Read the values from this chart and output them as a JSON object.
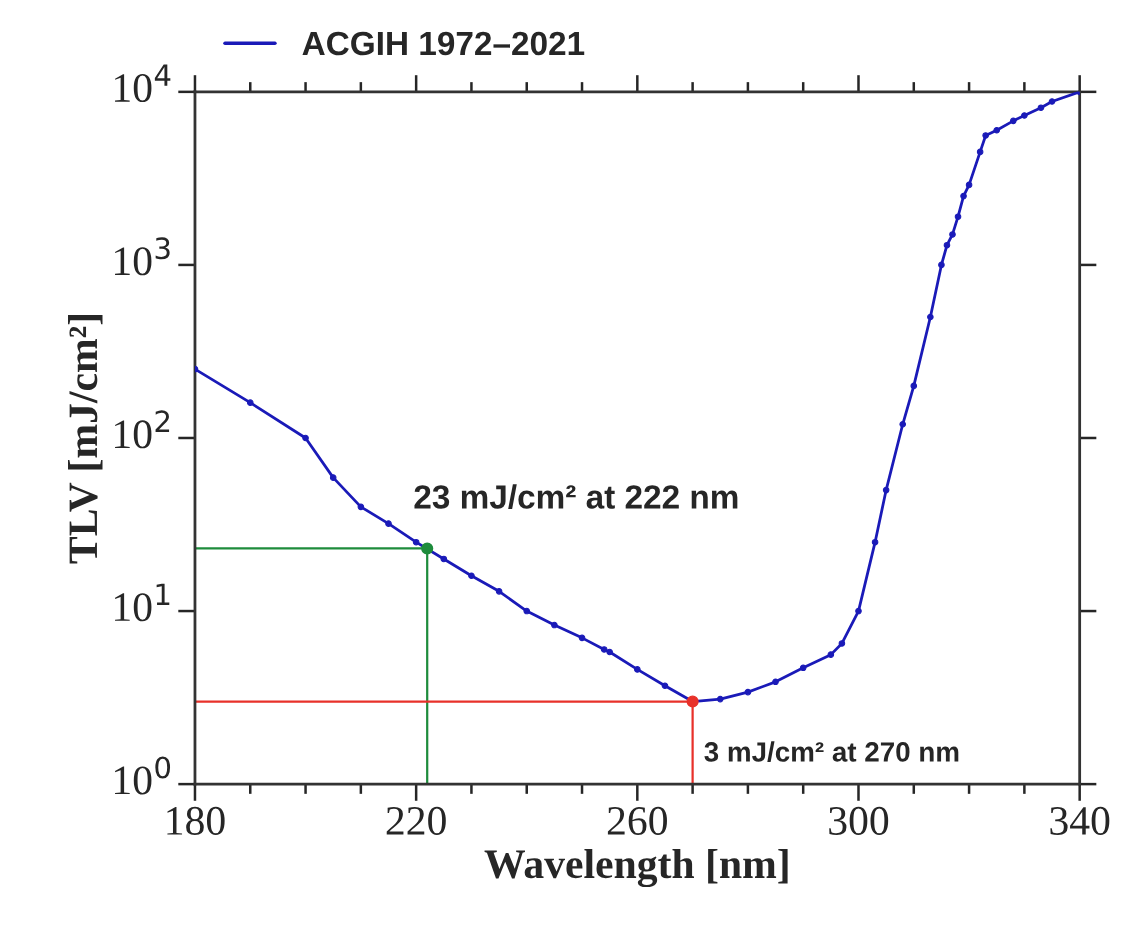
{
  "chart_data": {
    "type": "line",
    "xlabel": "Wavelength [nm]",
    "ylabel": "TLV [mJ/cm²]",
    "series": [
      {
        "name": "ACGIH 1972–2021",
        "color": "#1a1ab8",
        "x": [
          180,
          190,
          200,
          205,
          210,
          215,
          220,
          225,
          230,
          235,
          240,
          245,
          250,
          254,
          255,
          260,
          265,
          270,
          275,
          280,
          285,
          290,
          295,
          297,
          300,
          303,
          305,
          308,
          310,
          313,
          315,
          316,
          317,
          318,
          319,
          320,
          322,
          323,
          325,
          328,
          330,
          333,
          335,
          340
        ],
        "values": [
          250,
          160,
          100,
          59,
          40,
          32,
          25,
          20,
          16,
          13,
          10,
          8.3,
          7.0,
          6.0,
          5.8,
          4.6,
          3.7,
          3.0,
          3.1,
          3.4,
          3.9,
          4.7,
          5.6,
          6.5,
          10,
          25,
          50,
          120,
          200,
          500,
          1000,
          1300,
          1500,
          1900,
          2500,
          2900,
          4500,
          5600,
          6000,
          6800,
          7300,
          8100,
          8800,
          10000
        ]
      },
      {
        "type": "line",
        "color": "#1e8c3c",
        "marker": "none",
        "x": [
          180,
          222,
          222
        ],
        "values": [
          23,
          23,
          1
        ]
      },
      {
        "type": "line",
        "color": "#e8312a",
        "marker": "none",
        "x": [
          180,
          270,
          270
        ],
        "values": [
          3,
          3,
          1
        ]
      },
      {
        "type": "scatter",
        "x": [
          222,
          270
        ],
        "values": [
          23,
          3
        ],
        "colors": [
          "#1e8c3c",
          "#e8312a"
        ]
      }
    ],
    "annotations": [
      {
        "text": "23 mJ/cm² at 222 nm",
        "x": 222,
        "y": 23
      },
      {
        "text": "3 mJ/cm² at 270 nm",
        "x": 270,
        "y": 3
      }
    ],
    "log": "y",
    "xlim": [
      180,
      340
    ],
    "xticks": [
      180,
      220,
      260,
      300,
      340
    ],
    "ylim": [
      1,
      10000
    ],
    "yticks": [
      {
        "value": 1,
        "label": "10$^{0}$"
      },
      {
        "value": 10,
        "label": "10$^{1}$"
      },
      {
        "value": 100,
        "label": "10$^{2}$"
      },
      {
        "value": 1000,
        "label": "10$^{3}$"
      },
      {
        "value": 10000,
        "label": "10$^{4}$"
      }
    ],
    "marker": "circle",
    "legend": "top left",
    "grid": false
  }
}
